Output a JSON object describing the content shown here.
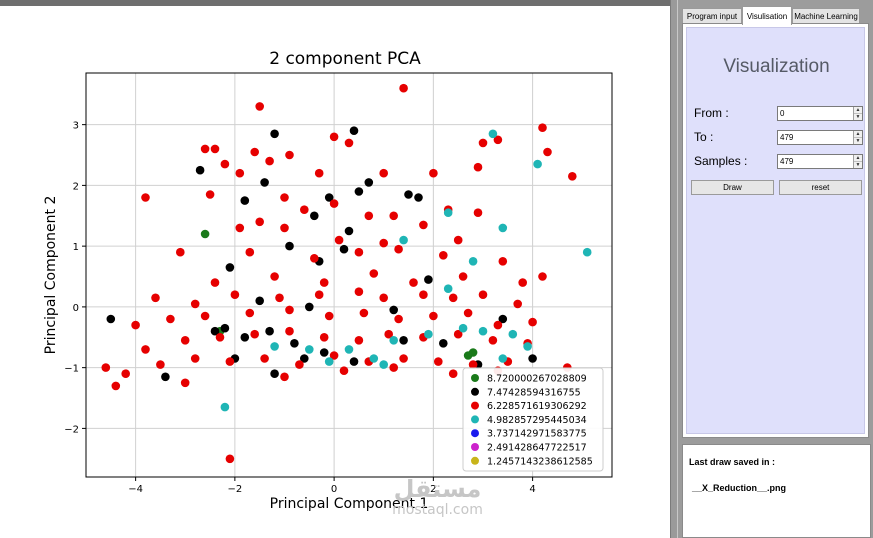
{
  "tabs": [
    {
      "label": "Program input"
    },
    {
      "label": "Visulisation"
    },
    {
      "label": "Machine Learning"
    }
  ],
  "panel": {
    "title": "Visualization",
    "from_label": "From :",
    "from_value": "0",
    "to_label": "To :",
    "to_value": "479",
    "samples_label": "Samples :",
    "samples_value": "479",
    "draw_label": "Draw",
    "reset_label": "reset"
  },
  "log": {
    "title": "Last draw saved in :",
    "file": "__X_Reduction__.png"
  },
  "watermark": {
    "logo_text": "مستقل",
    "site": "mostaql.com"
  },
  "chart_data": {
    "type": "scatter",
    "title": "2 component PCA",
    "xlabel": "Principal Component 1",
    "ylabel": "Principal Component 2",
    "xlim": [
      -5.0,
      5.6
    ],
    "ylim": [
      -2.8,
      3.85
    ],
    "xticks": [
      -4,
      -2,
      0,
      2,
      4
    ],
    "yticks": [
      -2,
      -1,
      0,
      1,
      2,
      3
    ],
    "grid": true,
    "legend_position": "bottom-right",
    "series": [
      {
        "name": "8.720000267028809",
        "color": "#1a7a1a",
        "points": [
          [
            -2.6,
            1.2
          ],
          [
            -2.3,
            -0.4
          ],
          [
            2.8,
            -0.75
          ],
          [
            2.7,
            -0.8
          ]
        ]
      },
      {
        "name": "7.47428594316755",
        "color": "#000000",
        "points": [
          [
            -2.7,
            2.25
          ],
          [
            -1.2,
            2.85
          ],
          [
            0.4,
            2.9
          ],
          [
            -1.8,
            1.75
          ],
          [
            -1.4,
            2.05
          ],
          [
            0.5,
            1.9
          ],
          [
            0.7,
            2.05
          ],
          [
            1.5,
            1.85
          ],
          [
            1.7,
            1.8
          ],
          [
            -0.4,
            1.5
          ],
          [
            -0.1,
            1.8
          ],
          [
            0.3,
            1.25
          ],
          [
            -0.9,
            1.0
          ],
          [
            0.2,
            0.95
          ],
          [
            -2.1,
            0.65
          ],
          [
            -0.3,
            0.75
          ],
          [
            1.9,
            0.45
          ],
          [
            -4.5,
            -0.2
          ],
          [
            -1.5,
            0.1
          ],
          [
            -0.5,
            0.0
          ],
          [
            1.2,
            -0.05
          ],
          [
            -2.2,
            -0.35
          ],
          [
            -1.8,
            -0.5
          ],
          [
            -1.3,
            -0.4
          ],
          [
            -0.8,
            -0.6
          ],
          [
            -0.2,
            -0.75
          ],
          [
            0.4,
            -0.9
          ],
          [
            1.4,
            -0.55
          ],
          [
            2.2,
            -0.6
          ],
          [
            2.9,
            -0.95
          ],
          [
            3.4,
            -0.2
          ],
          [
            4.0,
            -0.85
          ],
          [
            -3.4,
            -1.15
          ],
          [
            -2.0,
            -0.85
          ],
          [
            -1.2,
            -1.1
          ],
          [
            -0.6,
            -0.85
          ],
          [
            -2.4,
            -0.4
          ]
        ]
      },
      {
        "name": "6.228571619306292",
        "color": "#e60000",
        "points": [
          [
            -1.5,
            3.3
          ],
          [
            1.4,
            3.6
          ],
          [
            -2.6,
            2.6
          ],
          [
            -2.4,
            2.6
          ],
          [
            0.0,
            2.8
          ],
          [
            0.3,
            2.7
          ],
          [
            -1.6,
            2.55
          ],
          [
            -2.2,
            2.35
          ],
          [
            -1.3,
            2.4
          ],
          [
            -0.9,
            2.5
          ],
          [
            4.2,
            2.95
          ],
          [
            4.3,
            2.55
          ],
          [
            3.3,
            2.75
          ],
          [
            3.0,
            2.7
          ],
          [
            4.8,
            2.15
          ],
          [
            -1.9,
            2.2
          ],
          [
            -0.3,
            2.2
          ],
          [
            1.0,
            2.2
          ],
          [
            2.0,
            2.2
          ],
          [
            2.9,
            2.3
          ],
          [
            -3.8,
            1.8
          ],
          [
            -2.5,
            1.85
          ],
          [
            -1.0,
            1.8
          ],
          [
            0.0,
            1.7
          ],
          [
            1.2,
            1.5
          ],
          [
            2.3,
            1.6
          ],
          [
            -1.5,
            1.4
          ],
          [
            -0.6,
            1.6
          ],
          [
            0.7,
            1.5
          ],
          [
            1.8,
            1.35
          ],
          [
            2.9,
            1.55
          ],
          [
            -1.9,
            1.3
          ],
          [
            -1.0,
            1.3
          ],
          [
            0.1,
            1.1
          ],
          [
            1.0,
            1.05
          ],
          [
            2.5,
            1.1
          ],
          [
            -3.1,
            0.9
          ],
          [
            -1.7,
            0.9
          ],
          [
            -0.4,
            0.8
          ],
          [
            0.5,
            0.9
          ],
          [
            1.3,
            0.95
          ],
          [
            2.2,
            0.85
          ],
          [
            3.4,
            0.75
          ],
          [
            4.2,
            0.5
          ],
          [
            -2.4,
            0.4
          ],
          [
            -1.2,
            0.5
          ],
          [
            -0.2,
            0.4
          ],
          [
            0.8,
            0.55
          ],
          [
            1.6,
            0.4
          ],
          [
            2.6,
            0.5
          ],
          [
            3.8,
            0.4
          ],
          [
            -3.6,
            0.15
          ],
          [
            -2.8,
            0.05
          ],
          [
            -2.0,
            0.2
          ],
          [
            -1.1,
            0.15
          ],
          [
            -0.3,
            0.2
          ],
          [
            0.5,
            0.25
          ],
          [
            1.0,
            0.15
          ],
          [
            1.8,
            0.2
          ],
          [
            2.4,
            0.15
          ],
          [
            3.0,
            0.2
          ],
          [
            3.7,
            0.05
          ],
          [
            -4.0,
            -0.3
          ],
          [
            -3.3,
            -0.2
          ],
          [
            -2.6,
            -0.15
          ],
          [
            -1.7,
            -0.1
          ],
          [
            -0.9,
            -0.05
          ],
          [
            -0.1,
            -0.15
          ],
          [
            0.6,
            -0.1
          ],
          [
            1.3,
            -0.2
          ],
          [
            2.0,
            -0.15
          ],
          [
            2.7,
            -0.1
          ],
          [
            3.3,
            -0.3
          ],
          [
            4.0,
            -0.25
          ],
          [
            -3.8,
            -0.7
          ],
          [
            -3.0,
            -0.55
          ],
          [
            -2.3,
            -0.5
          ],
          [
            -1.6,
            -0.45
          ],
          [
            -0.9,
            -0.4
          ],
          [
            -0.2,
            -0.5
          ],
          [
            0.5,
            -0.55
          ],
          [
            1.1,
            -0.45
          ],
          [
            1.8,
            -0.5
          ],
          [
            2.5,
            -0.45
          ],
          [
            3.2,
            -0.55
          ],
          [
            3.9,
            -0.6
          ],
          [
            -4.6,
            -1.0
          ],
          [
            -4.2,
            -1.1
          ],
          [
            -3.5,
            -0.95
          ],
          [
            -2.8,
            -0.85
          ],
          [
            -2.1,
            -0.9
          ],
          [
            -1.4,
            -0.85
          ],
          [
            -0.7,
            -0.95
          ],
          [
            0.0,
            -0.8
          ],
          [
            0.7,
            -0.9
          ],
          [
            1.4,
            -0.85
          ],
          [
            2.1,
            -0.9
          ],
          [
            2.8,
            -0.95
          ],
          [
            3.5,
            -0.9
          ],
          [
            4.7,
            -1.0
          ],
          [
            -4.4,
            -1.3
          ],
          [
            -3.0,
            -1.25
          ],
          [
            -2.1,
            -2.5
          ],
          [
            -1.0,
            -1.15
          ],
          [
            0.2,
            -1.05
          ],
          [
            1.2,
            -1.0
          ],
          [
            2.4,
            -1.1
          ],
          [
            3.3,
            -1.05
          ]
        ]
      },
      {
        "name": "4.982857295445034",
        "color": "#1fb5b5",
        "points": [
          [
            3.2,
            2.85
          ],
          [
            4.1,
            2.35
          ],
          [
            2.3,
            1.55
          ],
          [
            3.4,
            1.3
          ],
          [
            1.4,
            1.1
          ],
          [
            5.1,
            0.9
          ],
          [
            2.8,
            0.75
          ],
          [
            2.3,
            0.3
          ],
          [
            -2.2,
            -1.65
          ],
          [
            3.0,
            -0.4
          ],
          [
            3.6,
            -0.45
          ],
          [
            3.9,
            -0.65
          ],
          [
            2.6,
            -0.35
          ],
          [
            1.9,
            -0.45
          ],
          [
            1.2,
            -0.55
          ],
          [
            0.3,
            -0.7
          ],
          [
            -0.1,
            -0.9
          ],
          [
            -1.2,
            -0.65
          ],
          [
            0.8,
            -0.85
          ],
          [
            1.0,
            -0.95
          ],
          [
            3.4,
            -0.85
          ],
          [
            -0.5,
            -0.7
          ]
        ]
      },
      {
        "name": "3.737142971583775",
        "color": "#1a1aee",
        "points": []
      },
      {
        "name": "2.491428647722517",
        "color": "#cc22cc",
        "points": []
      },
      {
        "name": "1.2457143238612585",
        "color": "#c8b41a",
        "points": []
      }
    ]
  }
}
